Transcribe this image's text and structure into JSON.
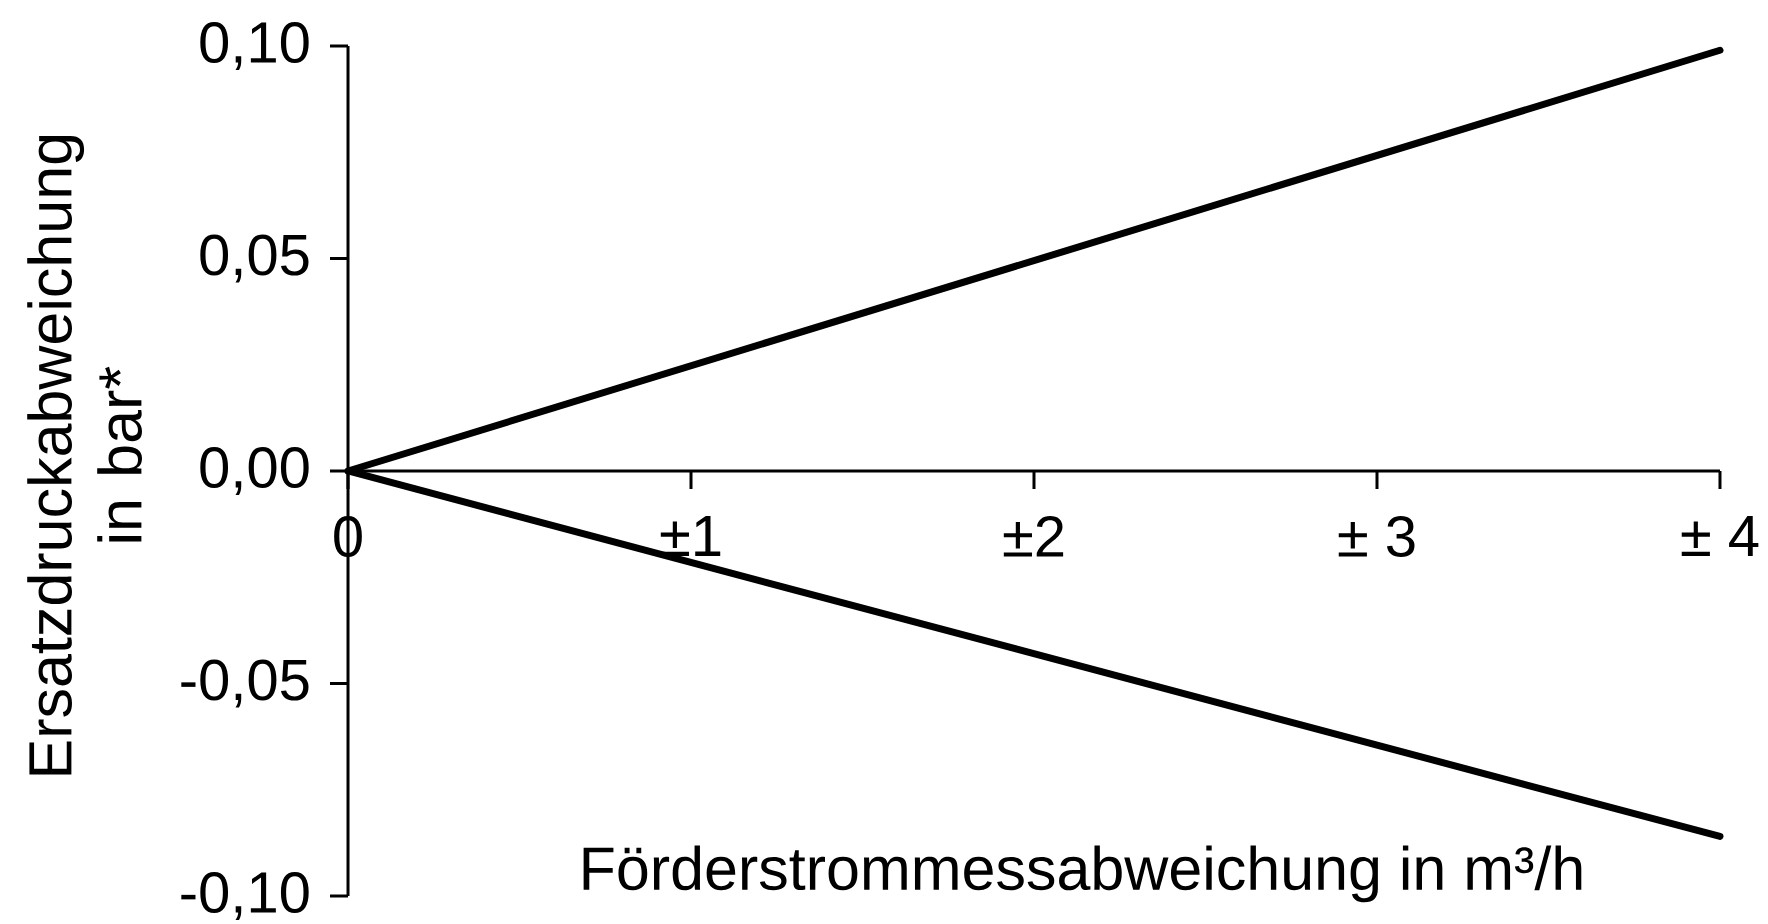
{
  "chart_data": {
    "type": "line",
    "xlabel": "Förderstrommessabweichung in m³/h",
    "ylabel": "Ersatzdruckabweichung in bar*",
    "x": [
      0,
      4
    ],
    "series": [
      {
        "color": "#000000",
        "values": [
          0,
          0.099
        ]
      },
      {
        "color": "#000000",
        "values": [
          0,
          -0.086
        ]
      }
    ],
    "xlim": [
      0,
      4
    ],
    "xticks": [
      0,
      {
        "value": 1,
        "label": "±1"
      },
      {
        "value": 2,
        "label": "±2"
      },
      {
        "value": 3,
        "label": "± 3"
      },
      {
        "value": 4,
        "label": "± 4"
      }
    ],
    "ylim": [
      -0.1,
      0.1
    ],
    "yticks": [
      {
        "value": -0.1,
        "label": "-0,10"
      },
      {
        "value": -0.05,
        "label": "-0,05"
      },
      {
        "value": 0,
        "label": "0,00"
      },
      {
        "value": 0.05,
        "label": "0,05"
      },
      {
        "value": 0.1,
        "label": "0,10"
      }
    ],
    "marker": "none"
  }
}
